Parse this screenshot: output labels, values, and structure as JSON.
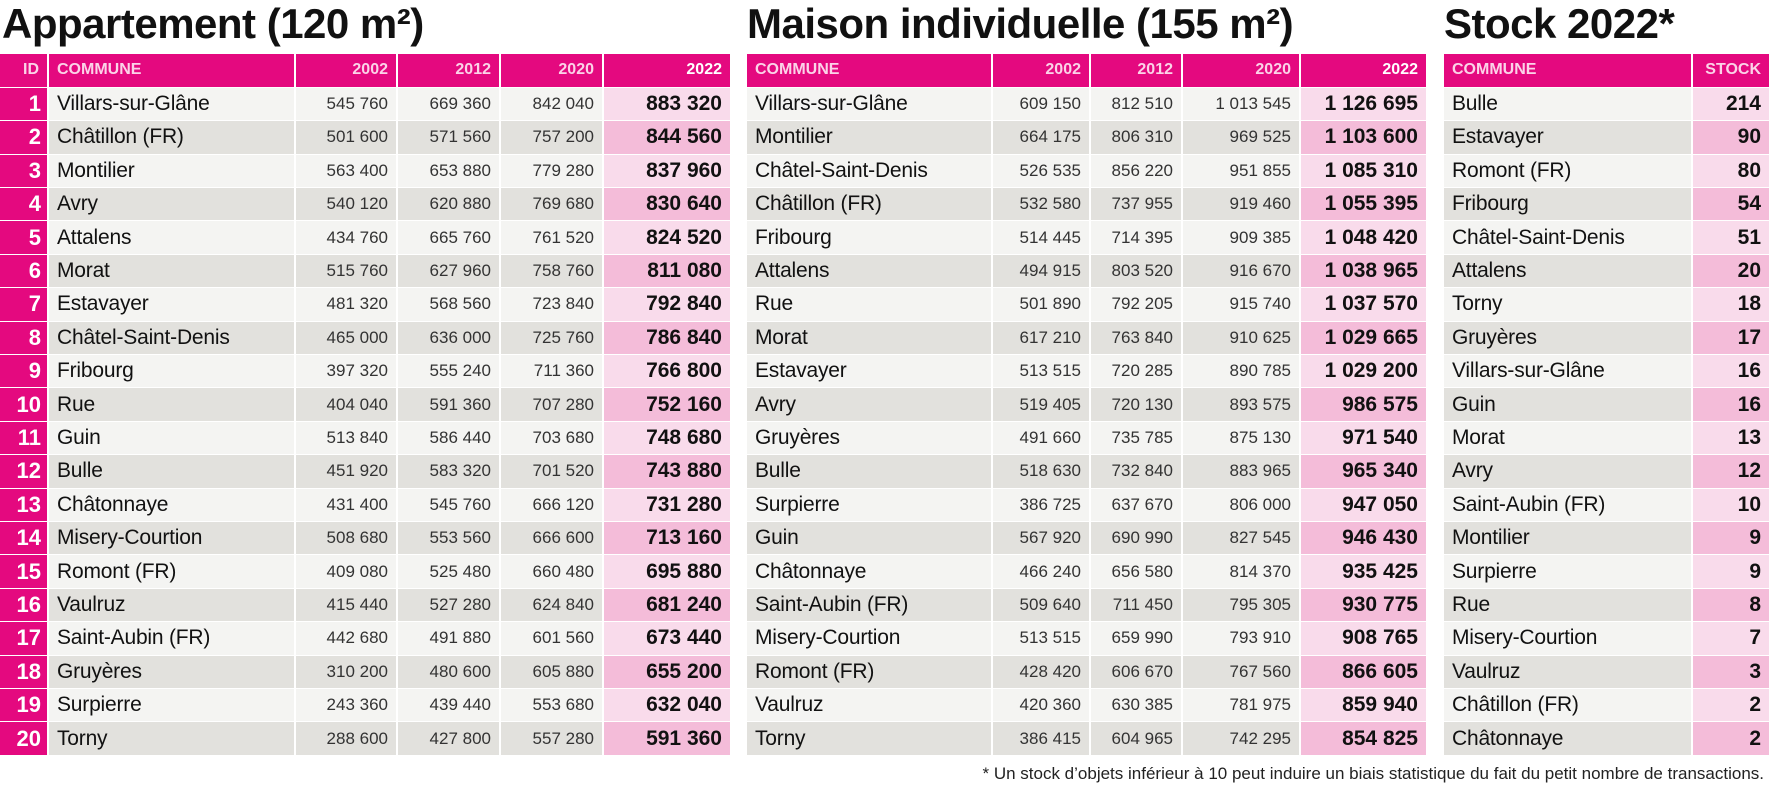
{
  "titles": {
    "appartement": "Appartement (120 m²)",
    "maison": "Maison individuelle (155 m²)",
    "stock": "Stock 2022*"
  },
  "headers": {
    "id": "ID",
    "commune": "COMMUNE",
    "y2002": "2002",
    "y2012": "2012",
    "y2020": "2020",
    "y2022": "2022",
    "stock": "STOCK"
  },
  "appartement": [
    [
      "1",
      "Villars-sur-Glâne",
      "545 760",
      "669 360",
      "842 040",
      "883 320"
    ],
    [
      "2",
      "Châtillon (FR)",
      "501 600",
      "571 560",
      "757 200",
      "844 560"
    ],
    [
      "3",
      "Montilier",
      "563 400",
      "653 880",
      "779 280",
      "837 960"
    ],
    [
      "4",
      "Avry",
      "540 120",
      "620 880",
      "769 680",
      "830 640"
    ],
    [
      "5",
      "Attalens",
      "434 760",
      "665 760",
      "761 520",
      "824 520"
    ],
    [
      "6",
      "Morat",
      "515 760",
      "627 960",
      "758 760",
      "811 080"
    ],
    [
      "7",
      "Estavayer",
      "481 320",
      "568 560",
      "723 840",
      "792 840"
    ],
    [
      "8",
      "Châtel-Saint-Denis",
      "465 000",
      "636 000",
      "725 760",
      "786 840"
    ],
    [
      "9",
      "Fribourg",
      "397 320",
      "555 240",
      "711 360",
      "766 800"
    ],
    [
      "10",
      "Rue",
      "404 040",
      "591 360",
      "707 280",
      "752 160"
    ],
    [
      "11",
      "Guin",
      "513 840",
      "586 440",
      "703 680",
      "748 680"
    ],
    [
      "12",
      "Bulle",
      "451 920",
      "583 320",
      "701 520",
      "743 880"
    ],
    [
      "13",
      "Châtonnaye",
      "431 400",
      "545 760",
      "666 120",
      "731 280"
    ],
    [
      "14",
      "Misery-Courtion",
      "508 680",
      "553 560",
      "666 600",
      "713 160"
    ],
    [
      "15",
      "Romont (FR)",
      "409 080",
      "525 480",
      "660 480",
      "695 880"
    ],
    [
      "16",
      "Vaulruz",
      "415 440",
      "527 280",
      "624 840",
      "681 240"
    ],
    [
      "17",
      "Saint-Aubin (FR)",
      "442 680",
      "491 880",
      "601 560",
      "673 440"
    ],
    [
      "18",
      "Gruyères",
      "310 200",
      "480 600",
      "605 880",
      "655 200"
    ],
    [
      "19",
      "Surpierre",
      "243 360",
      "439 440",
      "553 680",
      "632 040"
    ],
    [
      "20",
      "Torny",
      "288 600",
      "427 800",
      "557 280",
      "591 360"
    ]
  ],
  "maison": [
    [
      "Villars-sur-Glâne",
      "609 150",
      "812 510",
      "1 013 545",
      "1 126 695"
    ],
    [
      "Montilier",
      "664 175",
      "806 310",
      "969 525",
      "1 103 600"
    ],
    [
      "Châtel-Saint-Denis",
      "526 535",
      "856 220",
      "951 855",
      "1 085 310"
    ],
    [
      "Châtillon (FR)",
      "532 580",
      "737 955",
      "919 460",
      "1 055 395"
    ],
    [
      "Fribourg",
      "514 445",
      "714 395",
      "909 385",
      "1 048 420"
    ],
    [
      "Attalens",
      "494 915",
      "803 520",
      "916 670",
      "1 038 965"
    ],
    [
      "Rue",
      "501 890",
      "792 205",
      "915 740",
      "1 037 570"
    ],
    [
      "Morat",
      "617 210",
      "763 840",
      "910 625",
      "1 029 665"
    ],
    [
      "Estavayer",
      "513 515",
      "720 285",
      "890 785",
      "1 029 200"
    ],
    [
      "Avry",
      "519 405",
      "720 130",
      "893 575",
      "986 575"
    ],
    [
      "Gruyères",
      "491 660",
      "735 785",
      "875 130",
      "971 540"
    ],
    [
      "Bulle",
      "518 630",
      "732 840",
      "883 965",
      "965 340"
    ],
    [
      "Surpierre",
      "386 725",
      "637 670",
      "806 000",
      "947 050"
    ],
    [
      "Guin",
      "567 920",
      "690 990",
      "827 545",
      "946 430"
    ],
    [
      "Châtonnaye",
      "466 240",
      "656 580",
      "814 370",
      "935 425"
    ],
    [
      "Saint-Aubin (FR)",
      "509 640",
      "711 450",
      "795 305",
      "930 775"
    ],
    [
      "Misery-Courtion",
      "513 515",
      "659 990",
      "793 910",
      "908 765"
    ],
    [
      "Romont (FR)",
      "428 420",
      "606 670",
      "767 560",
      "866 605"
    ],
    [
      "Vaulruz",
      "420 360",
      "630 385",
      "781 975",
      "859 940"
    ],
    [
      "Torny",
      "386 415",
      "604 965",
      "742 295",
      "854 825"
    ]
  ],
  "stock": [
    [
      "Bulle",
      "214"
    ],
    [
      "Estavayer",
      "90"
    ],
    [
      "Romont (FR)",
      "80"
    ],
    [
      "Fribourg",
      "54"
    ],
    [
      "Châtel-Saint-Denis",
      "51"
    ],
    [
      "Attalens",
      "20"
    ],
    [
      "Torny",
      "18"
    ],
    [
      "Gruyères",
      "17"
    ],
    [
      "Villars-sur-Glâne",
      "16"
    ],
    [
      "Guin",
      "16"
    ],
    [
      "Morat",
      "13"
    ],
    [
      "Avry",
      "12"
    ],
    [
      "Saint-Aubin (FR)",
      "10"
    ],
    [
      "Montilier",
      "9"
    ],
    [
      "Surpierre",
      "9"
    ],
    [
      "Rue",
      "8"
    ],
    [
      "Misery-Courtion",
      "7"
    ],
    [
      "Vaulruz",
      "3"
    ],
    [
      "Châtillon (FR)",
      "2"
    ],
    [
      "Châtonnaye",
      "2"
    ]
  ],
  "footnote": "* Un stock d’objets inférieur à 10 peut induire un biais statistique du fait du petit nombre de transactions."
}
